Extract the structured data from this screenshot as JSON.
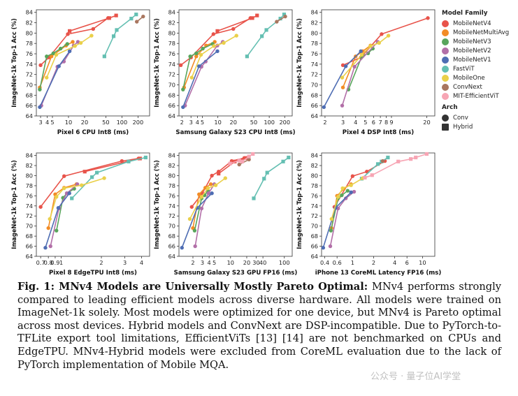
{
  "palette": {
    "MobileNetV4": "#e8534a",
    "MobileNetMultiAvg": "#f28c26",
    "MobileNetV3": "#58a55c",
    "MobileNetV2": "#b26fa8",
    "MobileNetV1": "#4e6db3",
    "FastViT": "#64bfb2",
    "MobileOne": "#ead04a",
    "ConvNext": "#a9765f",
    "MIT-EfficientViT": "#f7a5b4"
  },
  "legend": {
    "family_title": "Model Family",
    "families": [
      "MobileNetV4",
      "MobileNetMultiAvg",
      "MobileNetV3",
      "MobileNetV2",
      "MobileNetV1",
      "FastViT",
      "MobileOne",
      "ConvNext",
      "MIT-EfficientViT"
    ],
    "arch_title": "Arch",
    "arch": [
      {
        "label": "Conv",
        "marker": "circle"
      },
      {
        "label": "Hybrid",
        "marker": "square"
      }
    ]
  },
  "chart_data": [
    {
      "type": "scatter",
      "xlabel": "Pixel 6 CPU Int8 (ms)",
      "ylabel": "ImageNet-1k Top-1 Acc (%)",
      "xscale": "log",
      "xlim": [
        2.5,
        330
      ],
      "ylim": [
        64,
        84.5
      ],
      "xticks": [
        3,
        4,
        5,
        10,
        20,
        50,
        100,
        200
      ],
      "xticklabels": [
        "3",
        "4",
        "5",
        "10",
        "20",
        "50",
        "100",
        "200"
      ],
      "yticks": [
        64,
        66,
        68,
        70,
        72,
        74,
        76,
        78,
        80,
        82,
        84
      ],
      "series": [
        {
          "name": "MobileNetV4",
          "marker": "circle",
          "x": [
            3.0,
            4.3,
            9.7,
            29,
            55
          ],
          "y": [
            73.8,
            75.3,
            79.8,
            80.8,
            82.9
          ]
        },
        {
          "name": "MobileNetV4",
          "marker": "square",
          "x": [
            10.5,
            58,
            78
          ],
          "y": [
            80.4,
            82.9,
            83.4
          ]
        },
        {
          "name": "MobileNetMultiAvg",
          "marker": "circle",
          "x": [
            2.9,
            4.8,
            9,
            12
          ],
          "y": [
            69.5,
            75.5,
            77.6,
            78.3
          ]
        },
        {
          "name": "MobileNetV3",
          "marker": "circle",
          "x": [
            2.9,
            3.9,
            5.2,
            7.1,
            9.5
          ],
          "y": [
            69.1,
            75.5,
            76.1,
            77,
            77.9
          ]
        },
        {
          "name": "MobileNetV2",
          "marker": "circle",
          "x": [
            3.1,
            6.2,
            8.2,
            12.5,
            15
          ],
          "y": [
            66,
            73.5,
            74.5,
            77.6,
            78.3
          ]
        },
        {
          "name": "MobileNetV1",
          "marker": "circle",
          "x": [
            2.9,
            6.6,
            10.5
          ],
          "y": [
            65.7,
            73.6,
            76.5
          ]
        },
        {
          "name": "FastViT",
          "marker": "square",
          "x": [
            47,
            70,
            80,
            150,
            185
          ],
          "y": [
            75.5,
            79.4,
            80.6,
            82.8,
            83.6
          ]
        },
        {
          "name": "MobileOne",
          "marker": "circle",
          "x": [
            3.9,
            5.9,
            13.2,
            17,
            27
          ],
          "y": [
            71.4,
            75.8,
            77.5,
            78.1,
            79.5
          ]
        },
        {
          "name": "ConvNext",
          "marker": "circle",
          "x": [
            190,
            250
          ],
          "y": [
            82.2,
            83.2
          ]
        }
      ]
    },
    {
      "type": "scatter",
      "xlabel": "Samsung Galaxy S23 CPU Int8 (ms)",
      "ylabel": "ImageNet-1k Top-1 Acc (%)",
      "xscale": "log",
      "xlim": [
        1.75,
        280
      ],
      "ylim": [
        64,
        84.5
      ],
      "xticks": [
        2,
        3,
        4,
        5,
        10,
        20,
        50,
        100,
        200
      ],
      "xticklabels": [
        "2",
        "3",
        "4",
        "5",
        "10",
        "20",
        "50",
        "100",
        "200"
      ],
      "yticks": [
        64,
        66,
        68,
        70,
        72,
        74,
        76,
        78,
        80,
        82,
        84
      ],
      "series": [
        {
          "name": "MobileNetV4",
          "marker": "circle",
          "x": [
            1.9,
            3.0,
            8.2,
            20,
            43
          ],
          "y": [
            73.8,
            75.3,
            79.8,
            80.8,
            82.9
          ]
        },
        {
          "name": "MobileNetV4",
          "marker": "square",
          "x": [
            9.8,
            47,
            58
          ],
          "y": [
            80.4,
            82.9,
            83.4
          ]
        },
        {
          "name": "MobileNetMultiAvg",
          "marker": "circle",
          "x": [
            2.2,
            3.8,
            5.9,
            8.7
          ],
          "y": [
            69.5,
            75.5,
            77.6,
            78.3
          ]
        },
        {
          "name": "MobileNetV3",
          "marker": "circle",
          "x": [
            2.1,
            2.9,
            3.8,
            5.1,
            7.9
          ],
          "y": [
            69.1,
            75.5,
            76.1,
            77,
            77.9
          ]
        },
        {
          "name": "MobileNetV2",
          "marker": "circle",
          "x": [
            2.3,
            4.8,
            5.8,
            9.8,
            12.5
          ],
          "y": [
            66,
            73.5,
            74.5,
            77.6,
            78.3
          ]
        },
        {
          "name": "MobileNetV1",
          "marker": "circle",
          "x": [
            2.1,
            4.3,
            9.8
          ],
          "y": [
            65.7,
            73.6,
            76.5
          ]
        },
        {
          "name": "FastViT",
          "marker": "square",
          "x": [
            37,
            72,
            88,
            165,
            195
          ],
          "y": [
            75.5,
            79.4,
            80.6,
            82.8,
            83.6
          ]
        },
        {
          "name": "MobileOne",
          "marker": "circle",
          "x": [
            3.1,
            4.7,
            8.4,
            13,
            23
          ],
          "y": [
            71.4,
            75.8,
            77.5,
            78.1,
            79.5
          ]
        },
        {
          "name": "ConvNext",
          "marker": "circle",
          "x": [
            140,
            205
          ],
          "y": [
            82.2,
            83.2
          ]
        }
      ]
    },
    {
      "type": "scatter",
      "xlabel": "Pixel 4 DSP Int8 (ms)",
      "ylabel": "ImageNet-1k Top-1 Acc (%)",
      "xscale": "log",
      "xlim": [
        1.85,
        24
      ],
      "ylim": [
        64,
        84.5
      ],
      "xticks": [
        2,
        3,
        4,
        5,
        6,
        7,
        8,
        9,
        20
      ],
      "xticklabels": [
        "2",
        "3",
        "4",
        "5",
        "6",
        "7",
        "8",
        "9",
        "20"
      ],
      "yticks": [
        64,
        66,
        68,
        70,
        72,
        74,
        76,
        78,
        80,
        82,
        84
      ],
      "series": [
        {
          "name": "MobileNetV4",
          "marker": "circle",
          "x": [
            3.0,
            4.5,
            7.2,
            20.5
          ],
          "y": [
            73.8,
            75.3,
            79.8,
            82.9
          ]
        },
        {
          "name": "MobileNetMultiAvg",
          "marker": "circle",
          "x": [
            3.0,
            4.0,
            4.7,
            5.6
          ],
          "y": [
            69.5,
            75.5,
            76.5,
            77.6
          ]
        },
        {
          "name": "MobileNetV3",
          "marker": "circle",
          "x": [
            3.4,
            4.6,
            5.3,
            5.9
          ],
          "y": [
            69.1,
            75.5,
            76.1,
            77
          ]
        },
        {
          "name": "MobileNetV2",
          "marker": "circle",
          "x": [
            2.95,
            3.9,
            6.6
          ],
          "y": [
            66,
            73.5,
            78.3
          ]
        },
        {
          "name": "MobileNetV1",
          "marker": "circle",
          "x": [
            1.95,
            3.2,
            4.5
          ],
          "y": [
            65.7,
            73.6,
            76.5
          ]
        },
        {
          "name": "MobileOne",
          "marker": "circle",
          "x": [
            2.95,
            4.6,
            5.6,
            6.8,
            8.4
          ],
          "y": [
            71.4,
            75.8,
            77.5,
            78.1,
            79.5
          ]
        }
      ]
    },
    {
      "type": "scatter",
      "xlabel": "Pixel 8 EdgeTPU Int8 (ms)",
      "ylabel": "ImageNet-1k Top-1 Acc (%)",
      "xscale": "log",
      "xlim": [
        0.65,
        4.6
      ],
      "ylim": [
        64,
        84.5
      ],
      "xticks": [
        0.7,
        0.8,
        0.9,
        1,
        2,
        3,
        4
      ],
      "xticklabels": [
        "0.7",
        "0.8",
        "0.9",
        "1",
        "2",
        "3",
        "4"
      ],
      "yticks": [
        64,
        66,
        68,
        70,
        72,
        74,
        76,
        78,
        80,
        82,
        84
      ],
      "series": [
        {
          "name": "MobileNetV4",
          "marker": "circle",
          "x": [
            0.7,
            1.05,
            2.85,
            3.8
          ],
          "y": [
            73.8,
            79.9,
            82.9,
            83.4
          ]
        },
        {
          "name": "MobileNetV4",
          "marker": "square",
          "x": [
            1.5,
            3.9
          ],
          "y": [
            80.8,
            83.4
          ]
        },
        {
          "name": "MobileNetMultiAvg",
          "marker": "circle",
          "x": [
            0.8,
            0.9,
            1.05,
            1.3
          ],
          "y": [
            69.6,
            76.3,
            77.6,
            78.3
          ]
        },
        {
          "name": "MobileNetV3",
          "marker": "circle",
          "x": [
            0.92,
            1.03,
            1.1,
            1.25
          ],
          "y": [
            69.1,
            75.6,
            76.5,
            77.4
          ]
        },
        {
          "name": "MobileNetV2",
          "marker": "circle",
          "x": [
            0.83,
            0.96,
            1.1,
            1.32
          ],
          "y": [
            66,
            73.5,
            76.5,
            78.3
          ]
        },
        {
          "name": "MobileNetV1",
          "marker": "circle",
          "x": [
            0.76,
            0.95,
            1.15
          ],
          "y": [
            65.7,
            73.6,
            76.5
          ]
        },
        {
          "name": "FastViT",
          "marker": "square",
          "x": [
            1.2,
            1.7,
            1.85,
            3.2,
            4.3
          ],
          "y": [
            75.5,
            79.7,
            80.6,
            82.8,
            83.6
          ]
        },
        {
          "name": "MobileOne",
          "marker": "circle",
          "x": [
            0.82,
            0.92,
            1.05,
            1.42,
            2.1
          ],
          "y": [
            71.4,
            75.8,
            77.5,
            78.1,
            79.5
          ]
        }
      ]
    },
    {
      "type": "scatter",
      "xlabel": "Samsung Galaxy S23 GPU FP16 (ms)",
      "ylabel": "ImageNet-1k Top-1 Acc (%)",
      "xscale": "log",
      "xlim": [
        1.1,
        140
      ],
      "ylim": [
        64,
        84.5
      ],
      "xticks": [
        2,
        3,
        4,
        5,
        10,
        20,
        30,
        40,
        100
      ],
      "xticklabels": [
        "2",
        "3",
        "4",
        "5",
        "10",
        "20",
        "30",
        "40",
        "100"
      ],
      "yticks": [
        64,
        66,
        68,
        70,
        72,
        74,
        76,
        78,
        80,
        82,
        84
      ],
      "series": [
        {
          "name": "MobileNetV4",
          "marker": "circle",
          "x": [
            1.9,
            3.0,
            4.5,
            6.0,
            10.5,
            18
          ],
          "y": [
            73.8,
            76.5,
            80.0,
            80.8,
            82.9,
            83.5
          ]
        },
        {
          "name": "MobileNetV4",
          "marker": "square",
          "x": [
            6.0,
            12,
            20
          ],
          "y": [
            80.4,
            82.8,
            83.5
          ]
        },
        {
          "name": "MobileNetMultiAvg",
          "marker": "circle",
          "x": [
            2.0,
            2.6,
            3.4,
            4.3
          ],
          "y": [
            69.6,
            76.3,
            77.6,
            78.3
          ]
        },
        {
          "name": "MobileNetV3",
          "marker": "circle",
          "x": [
            2.15,
            2.9,
            3.3,
            3.8
          ],
          "y": [
            69.1,
            75.5,
            76.1,
            77
          ]
        },
        {
          "name": "MobileNetV2",
          "marker": "circle",
          "x": [
            2.2,
            2.9,
            3.9,
            5.0
          ],
          "y": [
            66,
            73.5,
            76.5,
            78.3
          ]
        },
        {
          "name": "MobileNetV1",
          "marker": "circle",
          "x": [
            1.25,
            2.4,
            4.5
          ],
          "y": [
            65.7,
            73.6,
            76.5
          ]
        },
        {
          "name": "FastViT",
          "marker": "square",
          "x": [
            27,
            42,
            48,
            95,
            120
          ],
          "y": [
            75.5,
            79.4,
            80.6,
            82.8,
            83.6
          ]
        },
        {
          "name": "MobileOne",
          "marker": "circle",
          "x": [
            1.75,
            2.9,
            3.8,
            5.3,
            8.0
          ],
          "y": [
            71.4,
            75.8,
            77.5,
            78.1,
            79.5
          ]
        },
        {
          "name": "ConvNext",
          "marker": "circle",
          "x": [
            14.5,
            22
          ],
          "y": [
            82.2,
            83.2
          ]
        },
        {
          "name": "MIT-EfficientViT",
          "marker": "square",
          "x": [
            9.8,
            14.5,
            16.5,
            22,
            26
          ],
          "y": [
            82.4,
            83.0,
            82.8,
            83.8,
            84.3
          ]
        }
      ]
    },
    {
      "type": "scatter",
      "xlabel": "iPhone 13 CoreML Latency FP16 (ms)",
      "ylabel": "ImageNet-1k Top-1 Acc (%)",
      "xscale": "log",
      "xlim": [
        0.36,
        15
      ],
      "ylim": [
        64,
        84.5
      ],
      "xticks": [
        0.4,
        0.6,
        1,
        2,
        4,
        6,
        10
      ],
      "xticklabels": [
        "0.4",
        "0.6",
        "1",
        "2",
        "4",
        "6",
        "10"
      ],
      "yticks": [
        64,
        66,
        68,
        70,
        72,
        74,
        76,
        78,
        80,
        82,
        84
      ],
      "series": [
        {
          "name": "MobileNetV4",
          "marker": "circle",
          "x": [
            0.55,
            1.0,
            1.6,
            2.9
          ],
          "y": [
            73.8,
            79.9,
            80.8,
            82.9
          ]
        },
        {
          "name": "MobileNetMultiAvg",
          "marker": "circle",
          "x": [
            0.5,
            0.6,
            0.75,
            0.95
          ],
          "y": [
            69.6,
            76.0,
            77.4,
            78.3
          ]
        },
        {
          "name": "MobileNetV3",
          "marker": "circle",
          "x": [
            0.49,
            0.62,
            0.7,
            0.85
          ],
          "y": [
            69.1,
            75.5,
            76.1,
            77
          ]
        },
        {
          "name": "MobileNetV2",
          "marker": "circle",
          "x": [
            0.48,
            0.62,
            0.8,
            1.05
          ],
          "y": [
            66,
            73.5,
            75.5,
            76.8
          ]
        },
        {
          "name": "MobileNetV1",
          "marker": "circle",
          "x": [
            0.38,
            0.57,
            0.95
          ],
          "y": [
            65.7,
            73.6,
            76.7
          ]
        },
        {
          "name": "FastViT",
          "marker": "square",
          "x": [
            1.35,
            2.3,
            2.6,
            3.2
          ],
          "y": [
            79.4,
            82.3,
            82.8,
            83.6
          ]
        },
        {
          "name": "MobileOne",
          "marker": "circle",
          "x": [
            0.5,
            0.62,
            0.72,
            0.95,
            1.4
          ],
          "y": [
            71.4,
            75.8,
            77.5,
            78.1,
            79.5
          ]
        },
        {
          "name": "ConvNext",
          "marker": "circle",
          "x": [
            2.7
          ],
          "y": [
            82.9
          ]
        },
        {
          "name": "MIT-EfficientViT",
          "marker": "square",
          "x": [
            1.5,
            1.9,
            4.5,
            6.8,
            8.0,
            11.5
          ],
          "y": [
            79.6,
            80.1,
            82.8,
            83.3,
            83.6,
            84.3
          ]
        }
      ]
    }
  ],
  "caption": {
    "lead": "Fig. 1: MNv4 Models are Universally Mostly Pareto Optimal:",
    "body": " MNv4 performs strongly compared to leading efficient models across diverse hardware. All models were trained on ImageNet-1k solely. Most models were optimized for one device, but MNv4 is Pareto optimal across most devices. Hybrid models and ConvNext are DSP-incompatible. Due to PyTorch-to-TFLite export tool limitations, EfficientViTs [13] [14] are not benchmarked on CPUs and EdgeTPU. MNv4-Hybrid models were excluded from CoreML evaluation due to the lack of PyTorch implementation of Mobile MQA."
  },
  "watermark": "公众号 · 量子位AI学堂"
}
